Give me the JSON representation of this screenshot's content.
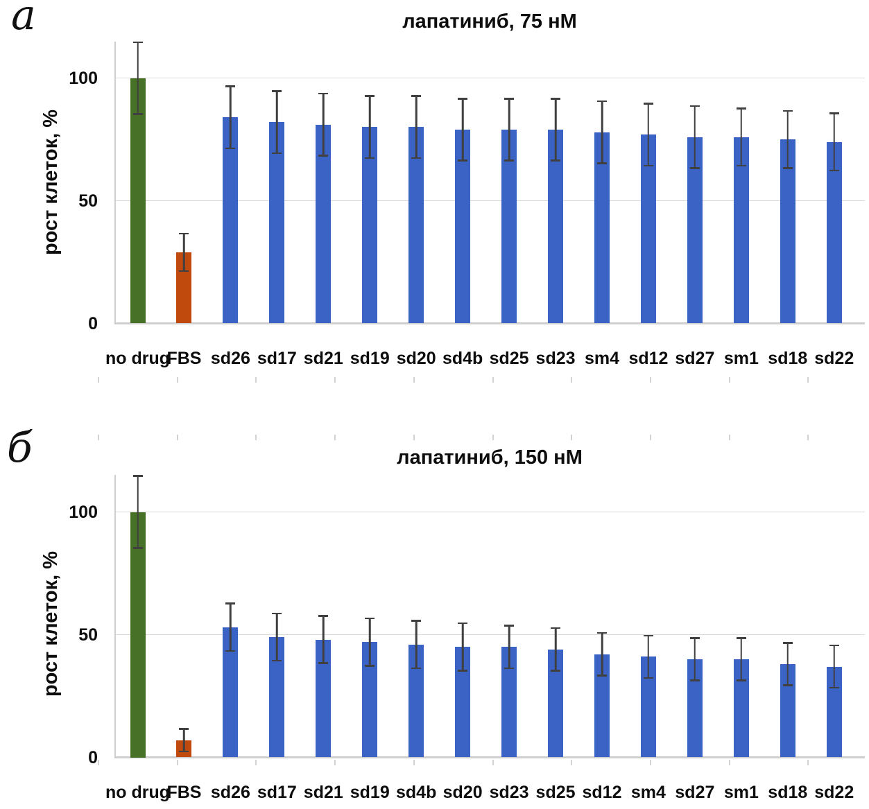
{
  "panel_letters": [
    "a",
    "б"
  ],
  "colors": {
    "control_bar": "#467126",
    "fbs_bar": "#C04A0E",
    "aptamer_bar": "#3B63C5",
    "error_bar": "#404040",
    "gridline": "#D9D9D9",
    "axis_line": "#CFCFCF",
    "tick_mark": "#D3D3D3",
    "text": "#000000"
  },
  "chart_data": [
    {
      "type": "bar",
      "panel": "a",
      "title": "лапатиниб, 75 нМ",
      "ylabel": "рост клеток, %",
      "xlabel": "",
      "ylim": [
        0,
        115
      ],
      "yticks": [
        0,
        50,
        100
      ],
      "grid": true,
      "legend": false,
      "categories": [
        "no drug",
        "FBS",
        "sd26",
        "sd17",
        "sd21",
        "sd19",
        "sd20",
        "sd4b",
        "sd25",
        "sd23",
        "sm4",
        "sd12",
        "sd27",
        "sm1",
        "sd18",
        "sd22"
      ],
      "values": [
        100,
        29,
        84,
        82,
        81,
        80,
        80,
        79,
        79,
        79,
        78,
        77,
        76,
        76,
        75,
        74
      ],
      "errors": [
        15,
        8,
        13,
        13,
        13,
        13,
        13,
        13,
        13,
        13,
        13,
        13,
        13,
        12,
        12,
        12
      ],
      "bar_colors": [
        "#467126",
        "#C04A0E",
        "#3B63C5",
        "#3B63C5",
        "#3B63C5",
        "#3B63C5",
        "#3B63C5",
        "#3B63C5",
        "#3B63C5",
        "#3B63C5",
        "#3B63C5",
        "#3B63C5",
        "#3B63C5",
        "#3B63C5",
        "#3B63C5",
        "#3B63C5"
      ]
    },
    {
      "type": "bar",
      "panel": "б",
      "title": "лапатиниб, 150 нМ",
      "ylabel": "рост клеток, %",
      "xlabel": "",
      "ylim": [
        0,
        115
      ],
      "yticks": [
        0,
        50,
        100
      ],
      "grid": true,
      "legend": false,
      "categories": [
        "no drug",
        "FBS",
        "sd26",
        "sd17",
        "sd21",
        "sd19",
        "sd4b",
        "sd20",
        "sd23",
        "sd25",
        "sd12",
        "sm4",
        "sd27",
        "sm1",
        "sd18",
        "sd22"
      ],
      "values": [
        100,
        7,
        53,
        49,
        48,
        47,
        46,
        45,
        45,
        44,
        42,
        41,
        40,
        40,
        38,
        37
      ],
      "errors": [
        15,
        5,
        10,
        10,
        10,
        10,
        10,
        10,
        9,
        9,
        9,
        9,
        9,
        9,
        9,
        9
      ],
      "bar_colors": [
        "#467126",
        "#C04A0E",
        "#3B63C5",
        "#3B63C5",
        "#3B63C5",
        "#3B63C5",
        "#3B63C5",
        "#3B63C5",
        "#3B63C5",
        "#3B63C5",
        "#3B63C5",
        "#3B63C5",
        "#3B63C5",
        "#3B63C5",
        "#3B63C5",
        "#3B63C5"
      ]
    }
  ]
}
